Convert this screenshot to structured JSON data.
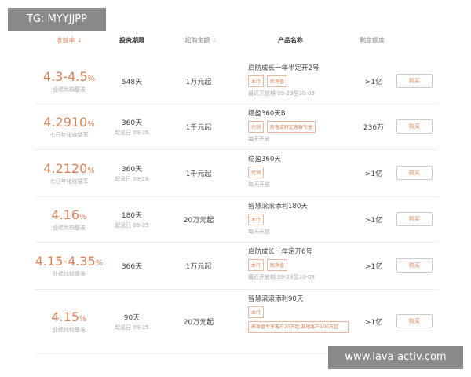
{
  "watermark_top": "TG: MYYJJPP",
  "watermark_bottom": "www.lava-activ.com",
  "headers": {
    "rate": "收益率",
    "rate_sort": "↓",
    "term": "投资期限",
    "amount": "起购金额",
    "amount_sort": "⇕",
    "product": "产品名称",
    "remaining": "剩余额度"
  },
  "accent": "#d9835a",
  "rows": [
    {
      "rate": "4.3-4.5",
      "pct": "%",
      "rate_label": "业绩比较基准",
      "term": "548天",
      "term_sub": "",
      "amount": "1万元起",
      "name": "启航成长一年半定开2号",
      "tags": [
        "本行",
        "新净值"
      ],
      "wide_tag": "",
      "note": "最近开放期 09-23至10-08",
      "remaining": ">1亿",
      "buy": "购买"
    },
    {
      "rate": "4.2910",
      "pct": "%",
      "rate_label": "七日年化收益率",
      "term": "360天",
      "term_sub": "起息日 09-26",
      "amount": "1千元起",
      "name": "稳盈360天B",
      "tags": [
        "代销",
        "新备或特定客群专享"
      ],
      "wide_tag": "",
      "note": "每天开放",
      "remaining": "236万",
      "buy": "购买"
    },
    {
      "rate": "4.2120",
      "pct": "%",
      "rate_label": "七日年化收益率",
      "term": "360天",
      "term_sub": "起息日 09-26",
      "amount": "1千元起",
      "name": "稳盈360天",
      "tags": [
        "代销"
      ],
      "wide_tag": "",
      "note": "每天开放",
      "remaining": ">1亿",
      "buy": "购买"
    },
    {
      "rate": "4.16",
      "pct": "%",
      "rate_label": "业绩比较基准",
      "term": "180天",
      "term_sub": "起息日 09-25",
      "amount": "20万元起",
      "name": "智慧滚滚添利180天",
      "tags": [
        "本行"
      ],
      "wide_tag": "",
      "note": "每天开放",
      "remaining": ">1亿",
      "buy": "购买"
    },
    {
      "rate": "4.15-4.35",
      "pct": "%",
      "rate_label": "业绩比较基准",
      "term": "366天",
      "term_sub": "",
      "amount": "1万元起",
      "name": "启航成长一年定开6号",
      "tags": [
        "本行",
        "新净值"
      ],
      "wide_tag": "",
      "note": "最近开放期 09-23至10-08",
      "remaining": ">1亿",
      "buy": "购买"
    },
    {
      "rate": "4.15",
      "pct": "%",
      "rate_label": "业绩比较基准",
      "term": "90天",
      "term_sub": "起息日 09-25",
      "amount": "20万元起",
      "name": "智慧滚滚添利90天",
      "tags": [
        "本行"
      ],
      "wide_tag": "高净值专享客户20万起,其他客户100万起",
      "note": "",
      "remaining": ">1亿",
      "buy": "购买"
    }
  ]
}
